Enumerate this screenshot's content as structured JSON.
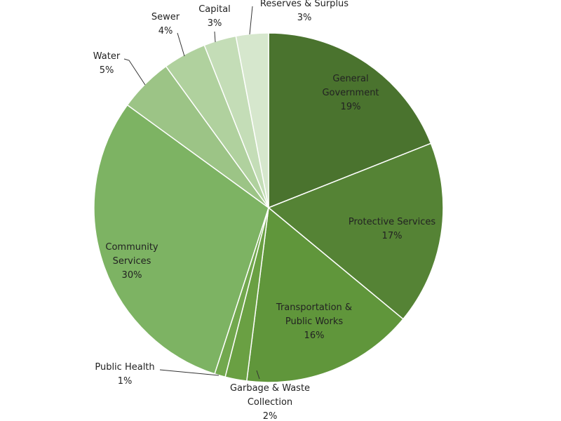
{
  "chart_data": {
    "type": "pie",
    "start_angle_deg": 0,
    "direction": "clockwise",
    "legend": "none",
    "slices": [
      {
        "label": [
          "General",
          "Government"
        ],
        "value": 19,
        "pct_label": "19%",
        "color": "#4a732e"
      },
      {
        "label": [
          "Protective Services"
        ],
        "value": 17,
        "pct_label": "17%",
        "color": "#558335"
      },
      {
        "label": [
          "Transportation &",
          "Public Works"
        ],
        "value": 16,
        "pct_label": "16%",
        "color": "#60963b"
      },
      {
        "label": [
          "Garbage & Waste",
          "Collection"
        ],
        "value": 2,
        "pct_label": "2%",
        "color": "#6aa043"
      },
      {
        "label": [
          "Public Health"
        ],
        "value": 1,
        "pct_label": "1%",
        "color": "#72a84e"
      },
      {
        "label": [
          "Community",
          "Services"
        ],
        "value": 30,
        "pct_label": "30%",
        "color": "#7db363"
      },
      {
        "label": [
          "Water"
        ],
        "value": 5,
        "pct_label": "5%",
        "color": "#9cc486"
      },
      {
        "label": [
          "Sewer"
        ],
        "value": 4,
        "pct_label": "4%",
        "color": "#b0d19e"
      },
      {
        "label": [
          "Capital"
        ],
        "value": 3,
        "pct_label": "3%",
        "color": "#c4ddb7"
      },
      {
        "label": [
          "Reserves & Surplus"
        ],
        "value": 3,
        "pct_label": "3%",
        "color": "#d6e7cd"
      }
    ]
  }
}
